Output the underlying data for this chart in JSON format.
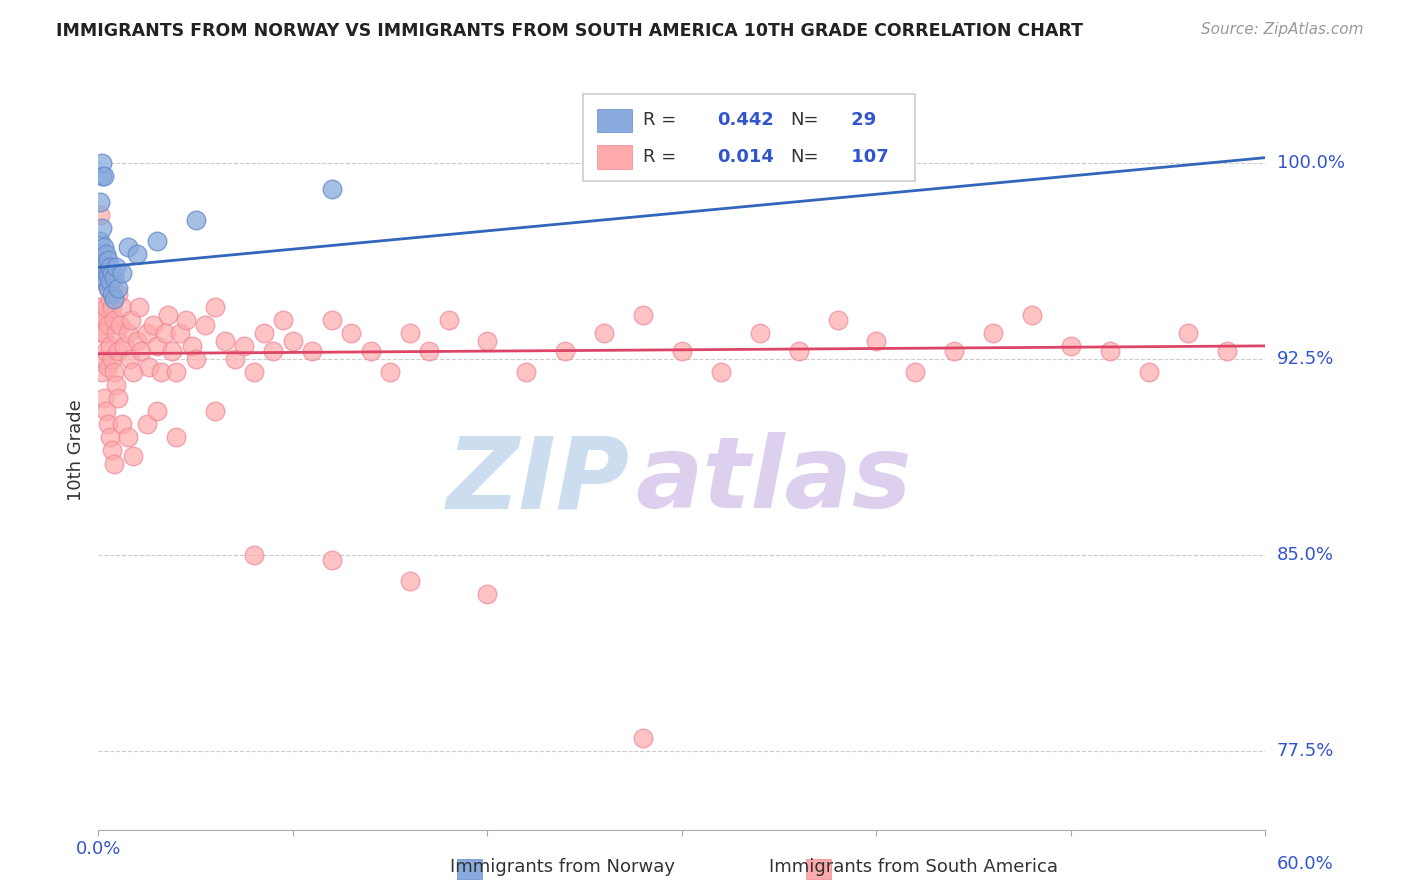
{
  "title": "IMMIGRANTS FROM NORWAY VS IMMIGRANTS FROM SOUTH AMERICA 10TH GRADE CORRELATION CHART",
  "source": "Source: ZipAtlas.com",
  "ylabel": "10th Grade",
  "y_tick_labels": [
    "77.5%",
    "85.0%",
    "92.5%",
    "100.0%"
  ],
  "y_tick_values": [
    0.775,
    0.85,
    0.925,
    1.0
  ],
  "x_min": 0.0,
  "x_max": 0.6,
  "y_min": 0.745,
  "y_max": 1.035,
  "legend_norway": "Immigrants from Norway",
  "legend_sa": "Immigrants from South America",
  "norway_R": 0.442,
  "norway_N": 29,
  "sa_R": 0.014,
  "sa_N": 107,
  "norway_color": "#88aadd",
  "norway_edge_color": "#6688cc",
  "sa_color": "#ffaaaa",
  "sa_edge_color": "#ee8899",
  "norway_line_color": "#3366bb",
  "sa_line_color": "#dd4466",
  "norway_line_y0": 0.96,
  "norway_line_y1": 1.002,
  "sa_line_y0": 0.927,
  "sa_line_y1": 0.93,
  "watermark_zip_color": "#ccddf0",
  "watermark_atlas_color": "#ddd0ee",
  "label_color": "#3355cc",
  "title_color": "#222222",
  "source_color": "#999999",
  "grid_color": "#cccccc",
  "norway_x": [
    0.001,
    0.001,
    0.002,
    0.002,
    0.002,
    0.003,
    0.003,
    0.003,
    0.003,
    0.004,
    0.004,
    0.004,
    0.005,
    0.005,
    0.005,
    0.006,
    0.006,
    0.007,
    0.007,
    0.008,
    0.008,
    0.009,
    0.01,
    0.012,
    0.015,
    0.02,
    0.03,
    0.05,
    0.12
  ],
  "norway_y": [
    0.97,
    0.985,
    0.995,
    1.0,
    0.975,
    0.968,
    0.962,
    0.958,
    0.995,
    0.965,
    0.96,
    0.955,
    0.963,
    0.957,
    0.952,
    0.96,
    0.955,
    0.958,
    0.95,
    0.956,
    0.948,
    0.96,
    0.952,
    0.958,
    0.968,
    0.965,
    0.97,
    0.978,
    0.99
  ],
  "sa_x": [
    0.001,
    0.001,
    0.001,
    0.002,
    0.002,
    0.002,
    0.002,
    0.003,
    0.003,
    0.003,
    0.003,
    0.004,
    0.004,
    0.004,
    0.005,
    0.005,
    0.005,
    0.006,
    0.006,
    0.007,
    0.007,
    0.008,
    0.008,
    0.009,
    0.009,
    0.01,
    0.01,
    0.011,
    0.012,
    0.013,
    0.015,
    0.016,
    0.017,
    0.018,
    0.02,
    0.021,
    0.022,
    0.025,
    0.026,
    0.028,
    0.03,
    0.032,
    0.034,
    0.036,
    0.038,
    0.04,
    0.042,
    0.045,
    0.048,
    0.05,
    0.055,
    0.06,
    0.065,
    0.07,
    0.075,
    0.08,
    0.085,
    0.09,
    0.095,
    0.1,
    0.11,
    0.12,
    0.13,
    0.14,
    0.15,
    0.16,
    0.17,
    0.18,
    0.2,
    0.22,
    0.24,
    0.26,
    0.28,
    0.3,
    0.32,
    0.34,
    0.36,
    0.38,
    0.4,
    0.42,
    0.44,
    0.46,
    0.48,
    0.5,
    0.52,
    0.54,
    0.56,
    0.58,
    0.003,
    0.004,
    0.005,
    0.006,
    0.007,
    0.008,
    0.01,
    0.012,
    0.015,
    0.018,
    0.025,
    0.03,
    0.04,
    0.06,
    0.08,
    0.12,
    0.16,
    0.2,
    0.28
  ],
  "sa_y": [
    0.98,
    0.965,
    0.945,
    0.96,
    0.94,
    0.935,
    0.92,
    0.955,
    0.942,
    0.935,
    0.925,
    0.96,
    0.945,
    0.928,
    0.952,
    0.938,
    0.922,
    0.948,
    0.93,
    0.945,
    0.925,
    0.94,
    0.92,
    0.935,
    0.915,
    0.95,
    0.928,
    0.938,
    0.945,
    0.93,
    0.935,
    0.925,
    0.94,
    0.92,
    0.932,
    0.945,
    0.928,
    0.935,
    0.922,
    0.938,
    0.93,
    0.92,
    0.935,
    0.942,
    0.928,
    0.92,
    0.935,
    0.94,
    0.93,
    0.925,
    0.938,
    0.945,
    0.932,
    0.925,
    0.93,
    0.92,
    0.935,
    0.928,
    0.94,
    0.932,
    0.928,
    0.94,
    0.935,
    0.928,
    0.92,
    0.935,
    0.928,
    0.94,
    0.932,
    0.92,
    0.928,
    0.935,
    0.942,
    0.928,
    0.92,
    0.935,
    0.928,
    0.94,
    0.932,
    0.92,
    0.928,
    0.935,
    0.942,
    0.93,
    0.928,
    0.92,
    0.935,
    0.928,
    0.91,
    0.905,
    0.9,
    0.895,
    0.89,
    0.885,
    0.91,
    0.9,
    0.895,
    0.888,
    0.9,
    0.905,
    0.895,
    0.905,
    0.85,
    0.848,
    0.84,
    0.835,
    0.78
  ]
}
